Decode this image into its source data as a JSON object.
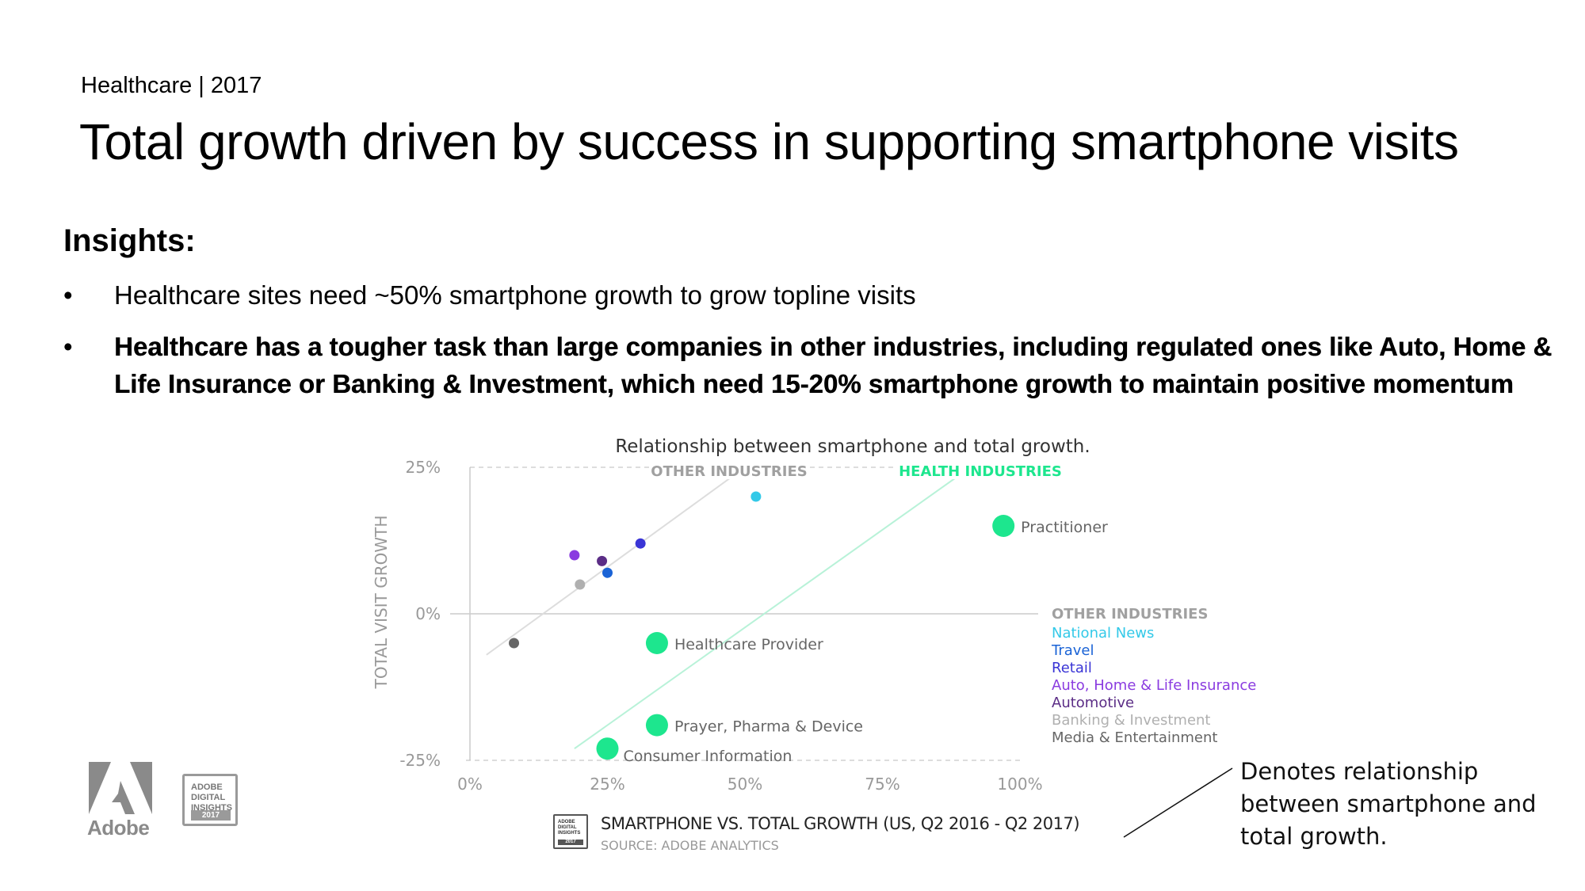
{
  "header": {
    "breadcrumb": "Healthcare | 2017",
    "title": "Total growth driven by success in supporting smartphone visits"
  },
  "insights": {
    "heading": "Insights:",
    "bullets": [
      "Healthcare sites need ~50% smartphone growth to grow topline visits",
      "Healthcare has a tougher task than large companies in other industries, including regulated ones like Auto, Home & Life Insurance or Banking & Investment, which need 15-20% smartphone growth to maintain positive momentum"
    ]
  },
  "chart_data": {
    "type": "scatter",
    "title": "Relationship between smartphone and total growth.",
    "xlabel": "",
    "ylabel": "TOTAL VISIT GROWTH",
    "xlim": [
      0,
      100
    ],
    "ylim": [
      -25,
      25
    ],
    "x_ticks": [
      "0%",
      "25%",
      "50%",
      "75%",
      "100%"
    ],
    "y_ticks": [
      "25%",
      "0%",
      "-25%"
    ],
    "group_labels": {
      "other": "OTHER INDUSTRIES",
      "health": "HEALTH INDUSTRIES"
    },
    "legend": {
      "title": "OTHER INDUSTRIES",
      "position": "right",
      "items": [
        {
          "name": "National News",
          "color": "#33c9e8"
        },
        {
          "name": "Travel",
          "color": "#1a63d6"
        },
        {
          "name": "Retail",
          "color": "#3a35d6"
        },
        {
          "name": "Auto, Home & Life Insurance",
          "color": "#8a3be0"
        },
        {
          "name": "Automotive",
          "color": "#5b2d86"
        },
        {
          "name": "Banking & Investment",
          "color": "#b0b0b0"
        },
        {
          "name": "Media & Entertainment",
          "color": "#666666"
        }
      ]
    },
    "series": [
      {
        "name": "OTHER INDUSTRIES",
        "points": [
          {
            "label": "National News",
            "x": 52,
            "y": 20,
            "color": "#33c9e8"
          },
          {
            "label": "Travel",
            "x": 25,
            "y": 7,
            "color": "#1a63d6"
          },
          {
            "label": "Retail",
            "x": 31,
            "y": 12,
            "color": "#3a35d6"
          },
          {
            "label": "Auto, Home & Life Insurance",
            "x": 19,
            "y": 10,
            "color": "#8a3be0"
          },
          {
            "label": "Automotive",
            "x": 24,
            "y": 9,
            "color": "#5b2d86"
          },
          {
            "label": "Banking & Investment",
            "x": 20,
            "y": 5,
            "color": "#b0b0b0"
          },
          {
            "label": "Media & Entertainment",
            "x": 8,
            "y": -5,
            "color": "#666666"
          }
        ]
      },
      {
        "name": "HEALTH INDUSTRIES",
        "color": "#1de68e",
        "points": [
          {
            "label": "Practitioner",
            "x": 97,
            "y": 15
          },
          {
            "label": "Healthcare Provider",
            "x": 34,
            "y": -5
          },
          {
            "label": "Prayer, Pharma & Device",
            "x": 34,
            "y": -19
          },
          {
            "label": "Consumer Information",
            "x": 25,
            "y": -23
          }
        ]
      }
    ],
    "trend_lines": [
      {
        "group": "other",
        "color": "#dddddd",
        "from": [
          3,
          -7
        ],
        "to": [
          50,
          25
        ]
      },
      {
        "group": "health",
        "color": "#b8f2d8",
        "from": [
          19,
          -23
        ],
        "to": [
          91,
          25
        ]
      }
    ],
    "annotation": "Denotes relationship between smartphone and total growth.",
    "source_title": "SMARTPHONE VS. TOTAL GROWTH (US, Q2 2016 - Q2 2017)",
    "source_sub": "SOURCE: ADOBE ANALYTICS"
  },
  "branding": {
    "logo_word": "Adobe",
    "badge_lines": [
      "ADOBE",
      "DIGITAL",
      "INSIGHTS"
    ],
    "badge_year": "2017",
    "health_color": "#1de68e"
  }
}
